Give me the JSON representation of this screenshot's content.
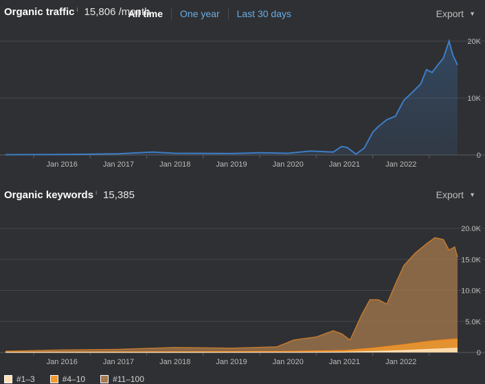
{
  "traffic": {
    "title": "Organic traffic",
    "info": "i",
    "value": "15,806 /month",
    "ranges": {
      "all_time": "All time",
      "one_year": "One year",
      "last_30": "Last 30 days"
    },
    "export_label": "Export",
    "caret": "▼"
  },
  "keywords": {
    "title": "Organic keywords",
    "info": "i",
    "value": "15,385",
    "export_label": "Export",
    "caret": "▼",
    "legend": [
      {
        "label": "#1–3",
        "color": "#ffe0b3"
      },
      {
        "label": "#4–10",
        "color": "#f39a2e"
      },
      {
        "label": "#11–100",
        "color": "#a77a4f"
      }
    ]
  },
  "colors": {
    "traffic_line": "#3d7ec7",
    "kw_line": "#e59937",
    "background": "#2f3033"
  },
  "chart_data": [
    {
      "type": "area",
      "title": "Organic traffic",
      "x_tick_labels": [
        "Jan 2016",
        "Jan 2017",
        "Jan 2018",
        "Jan 2019",
        "Jan 2020",
        "Jan 2021",
        "Jan 2022"
      ],
      "y_tick_labels": [
        "20K",
        "10K",
        "0"
      ],
      "ylim": [
        0,
        20000
      ],
      "series": [
        {
          "name": "Organic traffic",
          "x": [
            2015.0,
            2016.0,
            2017.0,
            2017.6,
            2018.0,
            2019.0,
            2019.5,
            2020.0,
            2020.4,
            2020.8,
            2020.95,
            2021.05,
            2021.2,
            2021.35,
            2021.5,
            2021.6,
            2021.75,
            2021.9,
            2022.05,
            2022.2,
            2022.35,
            2022.45,
            2022.55,
            2022.65,
            2022.75,
            2022.85,
            2022.92,
            2023.0
          ],
          "values": [
            50,
            80,
            200,
            500,
            300,
            250,
            400,
            300,
            700,
            500,
            1500,
            1300,
            150,
            1200,
            4000,
            5000,
            6200,
            6800,
            9600,
            11000,
            12500,
            15000,
            14500,
            15800,
            17000,
            20000,
            17500,
            15806
          ]
        }
      ]
    },
    {
      "type": "area",
      "title": "Organic keywords",
      "x_tick_labels": [
        "Jan 2016",
        "Jan 2017",
        "Jan 2018",
        "Jan 2019",
        "Jan 2020",
        "Jan 2021",
        "Jan 2022"
      ],
      "y_tick_labels": [
        "20.0K",
        "15.0K",
        "10.0K",
        "5.0K",
        "0"
      ],
      "ylim": [
        0,
        20000
      ],
      "series": [
        {
          "name": "#11–100",
          "x": [
            2015.0,
            2016.0,
            2017.0,
            2018.0,
            2019.0,
            2019.8,
            2020.1,
            2020.5,
            2020.8,
            2020.95,
            2021.1,
            2021.3,
            2021.45,
            2021.6,
            2021.75,
            2021.9,
            2022.05,
            2022.25,
            2022.45,
            2022.6,
            2022.75,
            2022.85,
            2022.95,
            2023.0
          ],
          "values": [
            200,
            400,
            500,
            800,
            700,
            900,
            2000,
            2500,
            3500,
            3000,
            2000,
            6000,
            8500,
            8500,
            7800,
            11000,
            14000,
            16000,
            17500,
            18500,
            18200,
            16500,
            17000,
            15385
          ]
        },
        {
          "name": "#4–10",
          "x": [
            2015.0,
            2018.0,
            2020.0,
            2021.0,
            2021.5,
            2022.0,
            2022.5,
            2023.0
          ],
          "values": [
            50,
            100,
            150,
            300,
            700,
            1200,
            1800,
            2200
          ]
        },
        {
          "name": "#1–3",
          "x": [
            2015.0,
            2020.0,
            2021.0,
            2021.5,
            2022.0,
            2022.5,
            2023.0
          ],
          "values": [
            10,
            20,
            50,
            150,
            300,
            500,
            700
          ]
        }
      ]
    }
  ]
}
